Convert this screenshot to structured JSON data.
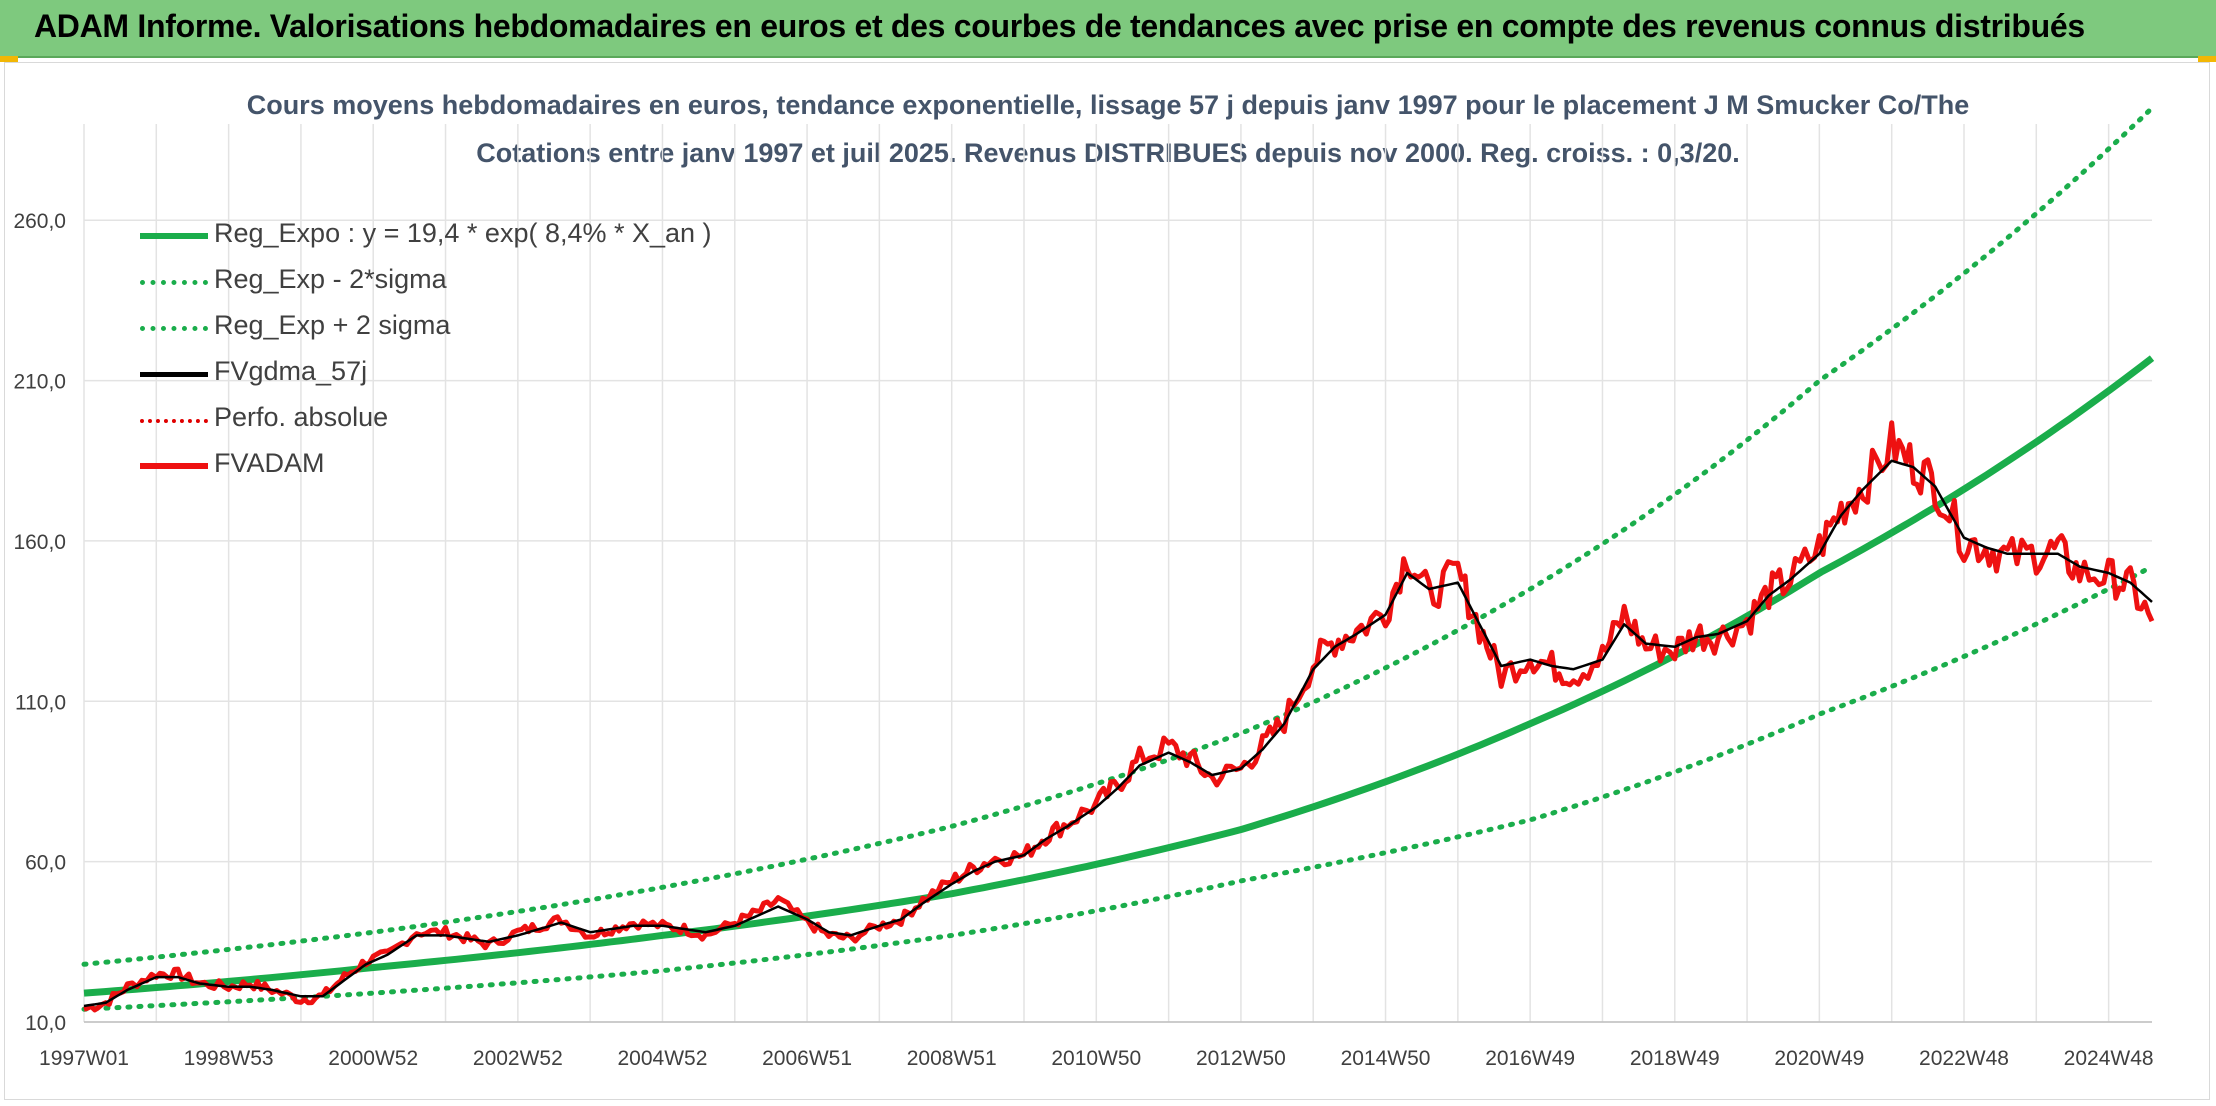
{
  "header": {
    "title": "ADAM Informe. Valorisations hebdomadaires en euros et des courbes de tendances avec prise en compte des revenus connus distribués"
  },
  "colors": {
    "header_bg": "#7ec97e",
    "trend_green": "#1aad4b",
    "smoothed_black": "#000000",
    "adam_red": "#ee1111",
    "title_text": "#44546a"
  },
  "chart_data": {
    "type": "line",
    "title_line1": "Cours moyens hebdomadaires en euros, tendance exponentielle, lissage 57 j depuis janv 1997 pour le placement J M Smucker Co/The",
    "title_line2": "Cotations entre janv 1997 et juil 2025. Revenus DISTRIBUES depuis nov 2000. Reg. croiss. : 0,3/20.",
    "xlabel": "",
    "ylabel": "",
    "x_range": [
      1997.0,
      2025.6
    ],
    "ylim": [
      10,
      290
    ],
    "y_ticks": [
      10,
      60,
      110,
      160,
      210,
      260
    ],
    "y_tick_labels": [
      "10,0",
      "60,0",
      "110,0",
      "160,0",
      "210,0",
      "260,0"
    ],
    "x_tick_labels": [
      "1997W01",
      "1998W53",
      "2000W52",
      "2002W52",
      "2004W52",
      "2006W51",
      "2008W51",
      "2010W50",
      "2012W50",
      "2014W50",
      "2016W49",
      "2018W49",
      "2020W49",
      "2022W48",
      "2024W48"
    ],
    "x_tick_positions": [
      1997.0,
      1999.0,
      2001.0,
      2003.0,
      2005.0,
      2007.0,
      2009.0,
      2011.0,
      2013.0,
      2015.0,
      2017.0,
      2019.0,
      2021.0,
      2023.0,
      2025.0
    ],
    "grid": true,
    "legend_position": "top-left",
    "legend": [
      {
        "label": "Reg_Expo : y = 19,4 * exp( 8,4% *  X_an )",
        "style": "solid-green"
      },
      {
        "label": "Reg_Exp - 2*sigma",
        "style": "dot-green"
      },
      {
        "label": "Reg_Exp + 2 sigma",
        "style": "dot-green"
      },
      {
        "label": "FVgdma_57j",
        "style": "solid-black"
      },
      {
        "label": "Perfo. absolue",
        "style": "dot-red"
      },
      {
        "label": "FVADAM",
        "style": "solid-red"
      }
    ],
    "trend": {
      "x": [
        1997.0,
        2001.0,
        2005.0,
        2009.0,
        2013.0,
        2017.0,
        2021.0,
        2025.6
      ],
      "reg": [
        19,
        27,
        37,
        50,
        70,
        103,
        150,
        217
      ],
      "minus_2sigma": [
        14,
        19,
        26,
        37,
        54,
        73,
        106,
        152
      ],
      "plus_2sigma": [
        28,
        38,
        52,
        71,
        100,
        145,
        210,
        295
      ]
    },
    "series": [
      {
        "name": "FVADAM",
        "x": [
          1997.0,
          1997.3,
          1997.6,
          1998.0,
          1998.3,
          1998.6,
          1999.0,
          1999.3,
          1999.6,
          2000.0,
          2000.3,
          2000.6,
          2000.9,
          2001.2,
          2001.6,
          2002.0,
          2002.3,
          2002.6,
          2003.0,
          2003.3,
          2003.6,
          2004.0,
          2004.3,
          2004.6,
          2005.0,
          2005.3,
          2005.6,
          2006.0,
          2006.3,
          2006.6,
          2007.0,
          2007.3,
          2007.6,
          2008.0,
          2008.3,
          2008.6,
          2009.0,
          2009.3,
          2009.6,
          2010.0,
          2010.3,
          2010.6,
          2011.0,
          2011.3,
          2011.6,
          2012.0,
          2012.3,
          2012.6,
          2013.0,
          2013.3,
          2013.6,
          2014.0,
          2014.3,
          2014.6,
          2015.0,
          2015.3,
          2015.6,
          2016.0,
          2016.3,
          2016.6,
          2017.0,
          2017.3,
          2017.6,
          2018.0,
          2018.3,
          2018.6,
          2019.0,
          2019.3,
          2019.6,
          2020.0,
          2020.3,
          2020.6,
          2021.0,
          2021.3,
          2021.6,
          2022.0,
          2022.3,
          2022.6,
          2023.0,
          2023.3,
          2023.6,
          2024.0,
          2024.3,
          2024.6,
          2025.0,
          2025.3,
          2025.6
        ],
        "values": [
          14,
          16,
          21,
          25,
          25,
          22,
          21,
          22,
          20,
          17,
          18,
          24,
          29,
          31,
          38,
          38,
          36,
          34,
          38,
          40,
          42,
          37,
          39,
          41,
          40,
          39,
          37,
          41,
          44,
          48,
          41,
          37,
          36,
          40,
          42,
          48,
          54,
          58,
          61,
          62,
          68,
          72,
          78,
          84,
          92,
          96,
          92,
          86,
          89,
          96,
          104,
          122,
          129,
          132,
          138,
          156,
          143,
          150,
          133,
          118,
          124,
          121,
          118,
          124,
          137,
          127,
          126,
          131,
          130,
          135,
          144,
          148,
          158,
          170,
          177,
          190,
          184,
          178,
          160,
          158,
          155,
          156,
          157,
          150,
          149,
          146,
          135
        ]
      },
      {
        "name": "FVgdma_57j",
        "x": [
          1997.0,
          1997.3,
          1997.6,
          1998.0,
          1998.3,
          1998.6,
          1999.0,
          1999.3,
          1999.6,
          2000.0,
          2000.3,
          2000.6,
          2000.9,
          2001.2,
          2001.6,
          2002.0,
          2002.3,
          2002.6,
          2003.0,
          2003.3,
          2003.6,
          2004.0,
          2004.3,
          2004.6,
          2005.0,
          2005.3,
          2005.6,
          2006.0,
          2006.3,
          2006.6,
          2007.0,
          2007.3,
          2007.6,
          2008.0,
          2008.3,
          2008.6,
          2009.0,
          2009.3,
          2009.6,
          2010.0,
          2010.3,
          2010.6,
          2011.0,
          2011.3,
          2011.6,
          2012.0,
          2012.3,
          2012.6,
          2013.0,
          2013.3,
          2013.6,
          2014.0,
          2014.3,
          2014.6,
          2015.0,
          2015.3,
          2015.6,
          2016.0,
          2016.3,
          2016.6,
          2017.0,
          2017.3,
          2017.6,
          2018.0,
          2018.3,
          2018.6,
          2019.0,
          2019.3,
          2019.6,
          2020.0,
          2020.3,
          2020.6,
          2021.0,
          2021.3,
          2021.6,
          2022.0,
          2022.3,
          2022.6,
          2023.0,
          2023.3,
          2023.6,
          2024.0,
          2024.3,
          2024.6,
          2025.0,
          2025.3,
          2025.6
        ],
        "values": [
          15,
          16,
          20,
          24,
          24,
          22,
          21,
          21,
          20,
          18,
          18,
          23,
          28,
          31,
          37,
          37,
          36,
          35,
          37,
          39,
          41,
          38,
          39,
          40,
          40,
          39,
          38,
          40,
          43,
          46,
          42,
          38,
          37,
          40,
          42,
          47,
          53,
          57,
          60,
          62,
          67,
          71,
          77,
          83,
          90,
          94,
          91,
          87,
          89,
          95,
          103,
          120,
          127,
          131,
          137,
          150,
          145,
          147,
          134,
          121,
          123,
          121,
          120,
          123,
          134,
          128,
          127,
          130,
          131,
          135,
          143,
          148,
          156,
          168,
          176,
          185,
          183,
          177,
          161,
          158,
          156,
          156,
          156,
          152,
          150,
          147,
          141
        ]
      }
    ]
  }
}
